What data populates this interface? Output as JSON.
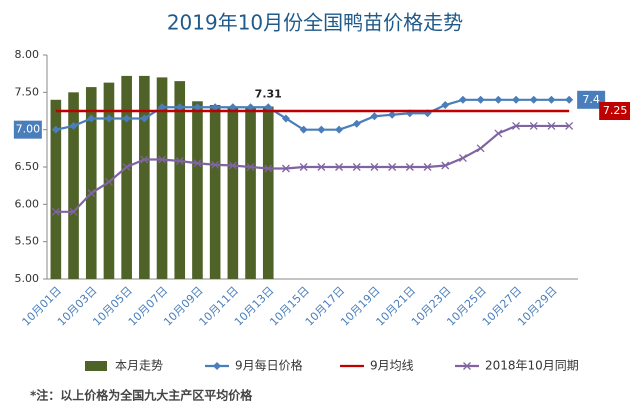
{
  "chart_data": {
    "type": "combo",
    "title": "2019年10月份全国鸭苗价格走势",
    "footnote": "*注：以上价格为全国九大主产区平均价格",
    "categories": [
      "10月01日",
      null,
      "10月03日",
      null,
      "10月05日",
      null,
      "10月07日",
      null,
      "10月09日",
      null,
      "10月11日",
      null,
      "10月13日",
      null,
      "10月15日",
      null,
      "10月17日",
      null,
      "10月19日",
      null,
      "10月21日",
      null,
      "10月23日",
      null,
      "10月25日",
      null,
      "10月27日",
      null,
      "10月29日",
      null
    ],
    "ylim": [
      5,
      8
    ],
    "yticks": [
      {
        "value": 5,
        "label": "5.00"
      },
      {
        "value": 5.5,
        "label": "5.50"
      },
      {
        "value": 6,
        "label": "6.00"
      },
      {
        "value": 6.5,
        "label": "6.50"
      },
      {
        "value": 7,
        "label": "7.00"
      },
      {
        "value": 7.5,
        "label": "7.50"
      },
      {
        "value": 8,
        "label": "8.00"
      }
    ],
    "grid": false,
    "legend": "bottom",
    "series": [
      {
        "name": "本月走势",
        "type": "bar",
        "color": "#4f6228",
        "values": [
          7.4,
          7.5,
          7.57,
          7.63,
          7.72,
          7.72,
          7.7,
          7.65,
          7.38,
          7.33,
          7.31,
          7.31,
          7.31,
          null,
          null,
          null,
          null,
          null,
          null,
          null,
          null,
          null,
          null,
          null,
          null,
          null,
          null,
          null,
          null,
          null
        ]
      },
      {
        "name": "9月每日价格",
        "type": "line",
        "marker": "diamond",
        "color": "#4a7ebb",
        "values": [
          7.0,
          7.05,
          7.15,
          7.15,
          7.15,
          7.15,
          7.3,
          7.3,
          7.3,
          7.3,
          7.3,
          7.3,
          7.3,
          7.15,
          7.0,
          7.0,
          7.0,
          7.08,
          7.18,
          7.2,
          7.22,
          7.22,
          7.33,
          7.4,
          7.4,
          7.4,
          7.4,
          7.4,
          7.4,
          7.4
        ],
        "value_labels": [
          "7.00",
          null,
          null,
          null,
          null,
          null,
          null,
          null,
          null,
          null,
          null,
          null,
          null,
          null,
          null,
          null,
          null,
          null,
          null,
          null,
          null,
          null,
          null,
          null,
          null,
          null,
          null,
          null,
          null,
          "7.4"
        ]
      },
      {
        "name": "9月均线",
        "type": "line",
        "marker": "none",
        "color": "#c00000",
        "values": [
          7.25,
          7.25,
          7.25,
          7.25,
          7.25,
          7.25,
          7.25,
          7.25,
          7.25,
          7.25,
          7.25,
          7.25,
          7.25,
          7.25,
          7.25,
          7.25,
          7.25,
          7.25,
          7.25,
          7.25,
          7.25,
          7.25,
          7.25,
          7.25,
          7.25,
          7.25,
          7.25,
          7.25,
          7.25,
          7.25
        ]
      },
      {
        "name": "2018年10月同期",
        "type": "line",
        "marker": "x",
        "color": "#8064a2",
        "values": [
          5.9,
          5.9,
          6.15,
          6.3,
          6.5,
          6.6,
          6.6,
          6.58,
          6.55,
          6.53,
          6.52,
          6.5,
          6.48,
          6.48,
          6.5,
          6.5,
          6.5,
          6.5,
          6.5,
          6.5,
          6.5,
          6.5,
          6.52,
          6.62,
          6.75,
          6.95,
          7.05,
          7.05,
          7.05,
          7.05
        ]
      }
    ]
  }
}
